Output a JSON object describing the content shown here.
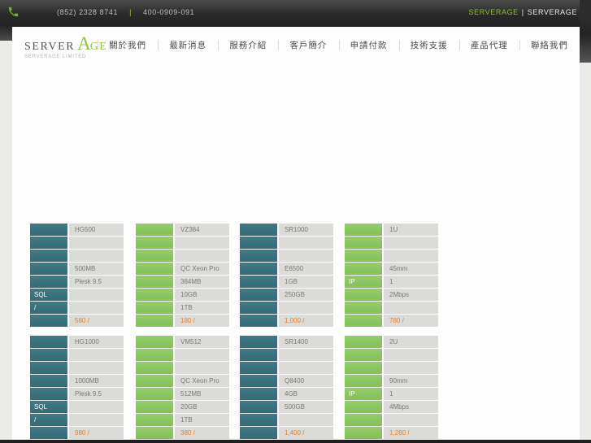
{
  "topbar": {
    "phone_primary": "(852) 2328 8741",
    "phone_divider": "|",
    "phone_secondary": "400-0909-091",
    "brand_primary": "SERVERAGE",
    "brand_divider": "|",
    "brand_secondary": "SERVERAGE"
  },
  "logo": {
    "word_left": "SERVER",
    "word_accent_initial": "A",
    "word_accent_rest": "GE",
    "subtitle": "SERVERAGE LIMITED"
  },
  "nav": {
    "items": [
      {
        "label": "關於我們"
      },
      {
        "label": "最新消息"
      },
      {
        "label": "服務介紹"
      },
      {
        "label": "客戶簡介"
      },
      {
        "label": "申請付款"
      },
      {
        "label": "技術支援"
      },
      {
        "label": "產品代理"
      },
      {
        "label": "聯絡我們"
      }
    ]
  },
  "colors": {
    "accent_green": "#8dc63f",
    "cell_teal": "#3a7382",
    "cell_green": "#8bc65e",
    "cell_gray": "#dbdbd8",
    "price_orange": "#ef7c1e"
  },
  "pricing": {
    "tables": [
      {
        "name": "HG500",
        "scheme": "teal",
        "rows": [
          {
            "left": "",
            "right": "HG500"
          },
          {
            "left": "",
            "right": ""
          },
          {
            "left": "",
            "right": ""
          },
          {
            "left": "",
            "right": "500MB"
          },
          {
            "left": "",
            "right": "Plesk 9.5"
          },
          {
            "left": "SQL",
            "right": ""
          },
          {
            "left": "/",
            "right": ""
          },
          {
            "left": "",
            "right": "580 /",
            "price": true
          }
        ]
      },
      {
        "name": "VZ384",
        "scheme": "green",
        "rows": [
          {
            "left": "",
            "right": "VZ384"
          },
          {
            "left": "",
            "right": ""
          },
          {
            "left": "",
            "right": ""
          },
          {
            "left": "",
            "right": "QC Xeon Pro"
          },
          {
            "left": "",
            "right": "384MB"
          },
          {
            "left": "",
            "right": "10GB"
          },
          {
            "left": "",
            "right": "1TB"
          },
          {
            "left": "",
            "right": "180 /",
            "price": true
          }
        ]
      },
      {
        "name": "SR1000",
        "scheme": "teal",
        "rows": [
          {
            "left": "",
            "right": "SR1000"
          },
          {
            "left": "",
            "right": ""
          },
          {
            "left": "",
            "right": ""
          },
          {
            "left": "",
            "right": "E6500"
          },
          {
            "left": "",
            "right": "1GB"
          },
          {
            "left": "",
            "right": "250GB"
          },
          {
            "left": "",
            "right": ""
          },
          {
            "left": "",
            "right": "1,000 /",
            "price": true
          }
        ]
      },
      {
        "name": "1U",
        "scheme": "green",
        "rows": [
          {
            "left": "",
            "right": "1U"
          },
          {
            "left": "",
            "right": ""
          },
          {
            "left": "",
            "right": ""
          },
          {
            "left": "",
            "right": "45mm"
          },
          {
            "left": "IP",
            "right": "1"
          },
          {
            "left": "",
            "right": "2Mbps"
          },
          {
            "left": "",
            "right": ""
          },
          {
            "left": "",
            "right": "780 /",
            "price": true
          }
        ]
      },
      {
        "name": "HG1000",
        "scheme": "teal",
        "rows": [
          {
            "left": "",
            "right": "HG1000"
          },
          {
            "left": "",
            "right": ""
          },
          {
            "left": "",
            "right": ""
          },
          {
            "left": "",
            "right": "1000MB"
          },
          {
            "left": "",
            "right": "Plesk 9.5"
          },
          {
            "left": "SQL",
            "right": ""
          },
          {
            "left": "/",
            "right": ""
          },
          {
            "left": "",
            "right": "980 /",
            "price": true
          }
        ]
      },
      {
        "name": "VM512",
        "scheme": "green",
        "rows": [
          {
            "left": "",
            "right": "VM512"
          },
          {
            "left": "",
            "right": ""
          },
          {
            "left": "",
            "right": ""
          },
          {
            "left": "",
            "right": "QC Xeon Pro"
          },
          {
            "left": "",
            "right": "512MB"
          },
          {
            "left": "",
            "right": "20GB"
          },
          {
            "left": "",
            "right": "1TB"
          },
          {
            "left": "",
            "right": "380 /",
            "price": true
          }
        ]
      },
      {
        "name": "SR1400",
        "scheme": "teal",
        "rows": [
          {
            "left": "",
            "right": "SR1400"
          },
          {
            "left": "",
            "right": ""
          },
          {
            "left": "",
            "right": ""
          },
          {
            "left": "",
            "right": "Q8400"
          },
          {
            "left": "",
            "right": "4GB"
          },
          {
            "left": "",
            "right": "500GB"
          },
          {
            "left": "",
            "right": ""
          },
          {
            "left": "",
            "right": "1,400 /",
            "price": true
          }
        ]
      },
      {
        "name": "2U",
        "scheme": "green",
        "rows": [
          {
            "left": "",
            "right": "2U"
          },
          {
            "left": "",
            "right": ""
          },
          {
            "left": "",
            "right": ""
          },
          {
            "left": "",
            "right": "90mm"
          },
          {
            "left": "IP",
            "right": "1"
          },
          {
            "left": "",
            "right": "4Mbps"
          },
          {
            "left": "",
            "right": ""
          },
          {
            "left": "",
            "right": "1,280 /",
            "price": true
          }
        ]
      }
    ]
  }
}
